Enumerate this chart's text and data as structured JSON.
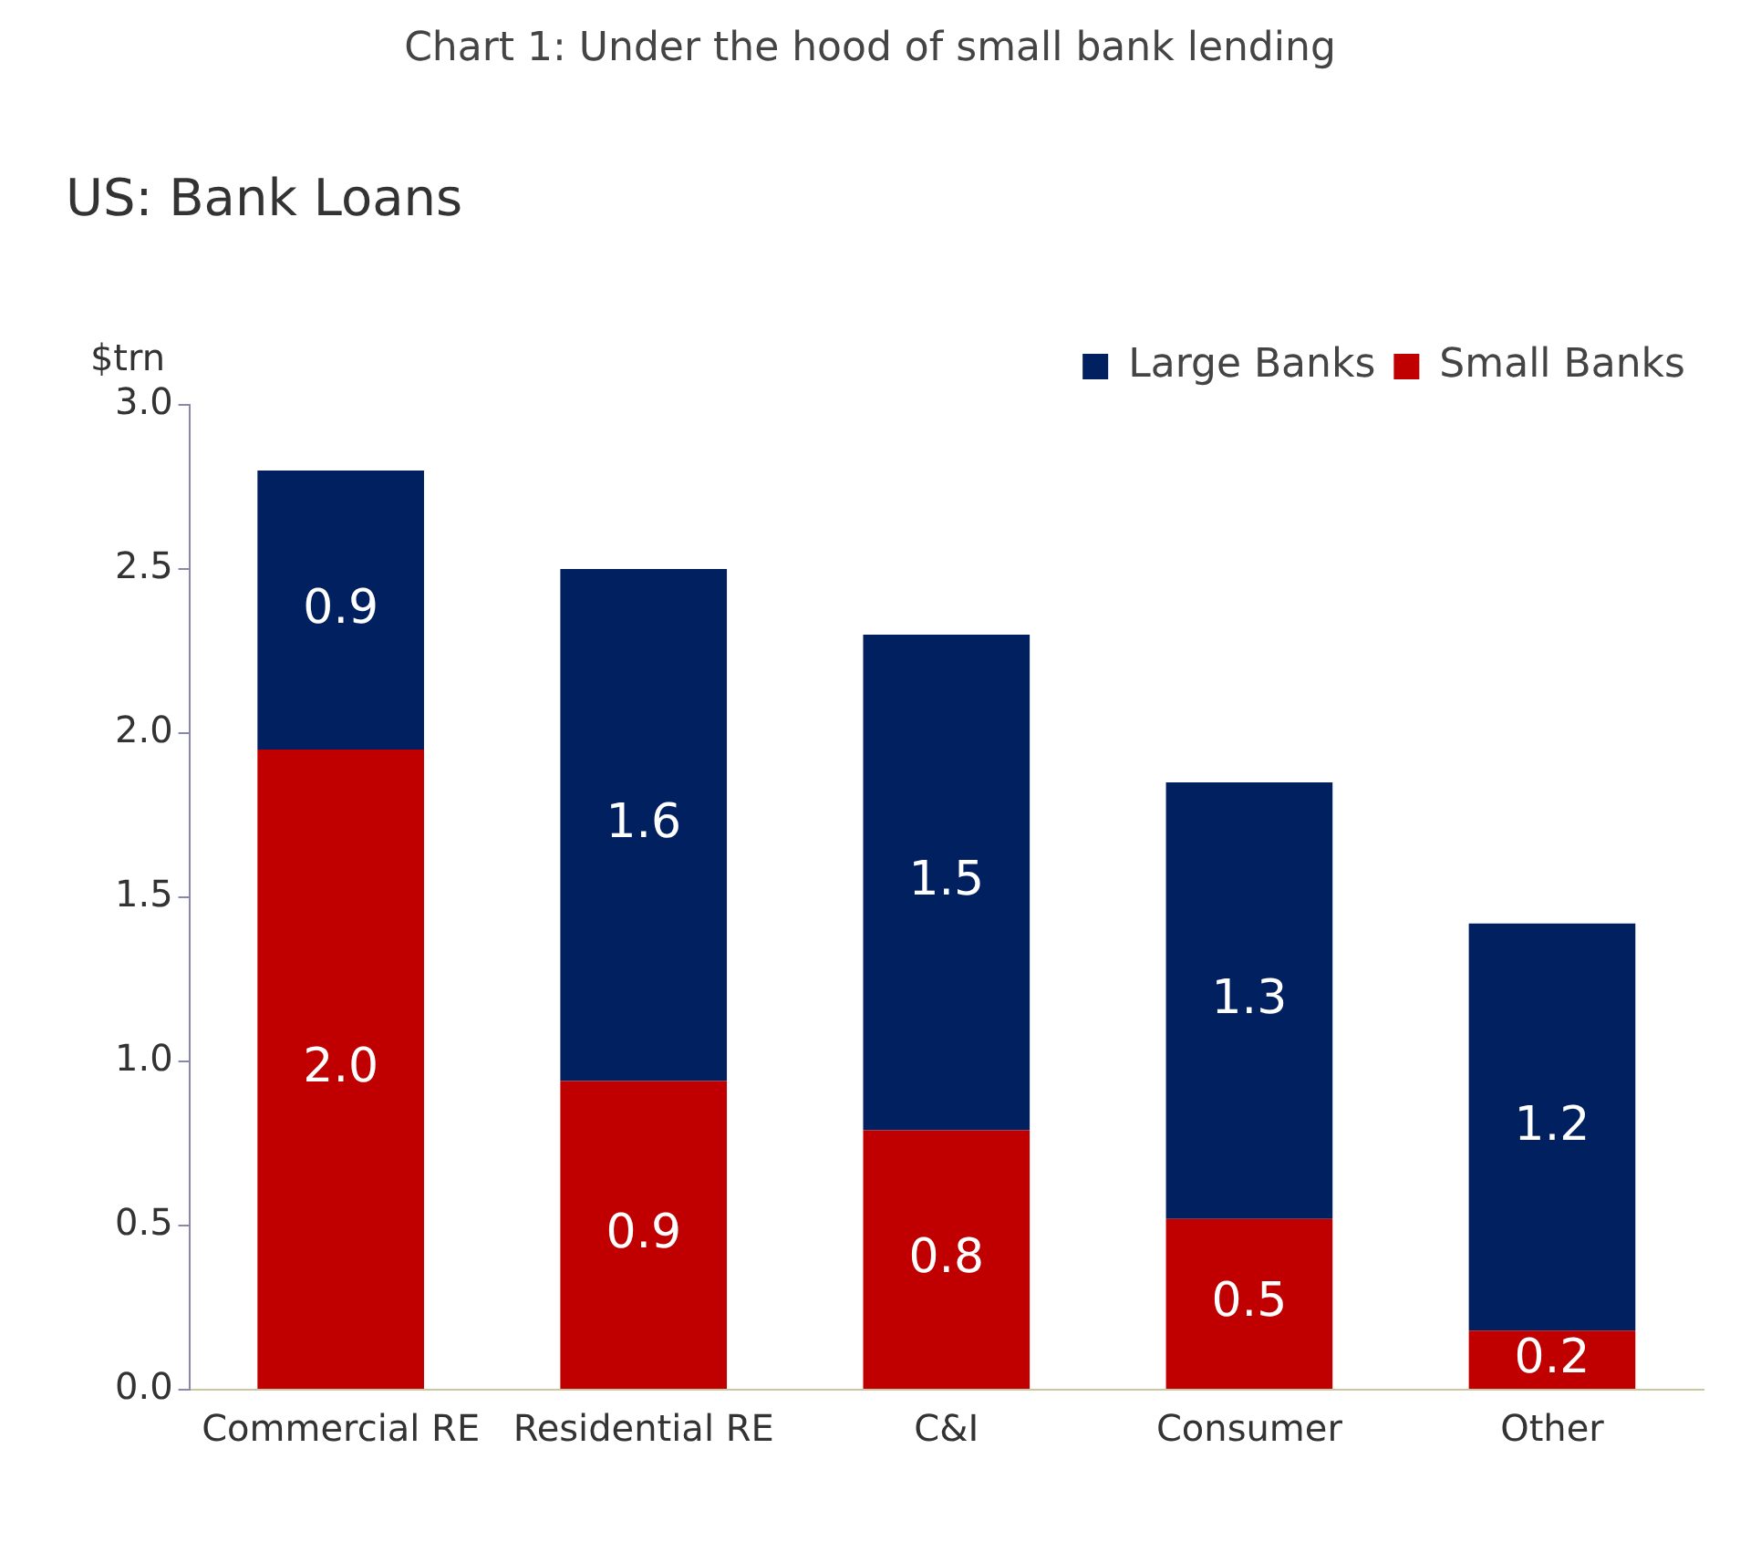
{
  "chart_data": {
    "type": "bar",
    "title": "Chart 1: Under the hood of small bank lending",
    "subtitle": "US: Bank Loans",
    "ylabel": "$trn",
    "categories": [
      "Commercial RE",
      "Residential RE",
      "C&I",
      "Consumer",
      "Other"
    ],
    "stacked": true,
    "series": [
      {
        "name": "Small Banks",
        "color": "#c00000",
        "values": [
          1.95,
          0.94,
          0.79,
          0.52,
          0.18
        ],
        "value_labels": [
          "2.0",
          "0.9",
          "0.8",
          "0.5",
          "0.2"
        ]
      },
      {
        "name": "Large Banks",
        "color": "#002060",
        "values": [
          0.85,
          1.56,
          1.51,
          1.33,
          1.24
        ],
        "value_labels": [
          "0.9",
          "1.6",
          "1.5",
          "1.3",
          "1.2"
        ]
      }
    ],
    "ylim": [
      0,
      3
    ],
    "yticks": [
      {
        "value": 0,
        "label": "0.0"
      },
      {
        "value": 0.5,
        "label": "0.5"
      },
      {
        "value": 1,
        "label": "1.0"
      },
      {
        "value": 1.5,
        "label": "1.5"
      },
      {
        "value": 2,
        "label": "2.0"
      },
      {
        "value": 2.5,
        "label": "2.5"
      },
      {
        "value": 3,
        "label": "3.0"
      }
    ],
    "grid": false,
    "legend": "top right"
  }
}
